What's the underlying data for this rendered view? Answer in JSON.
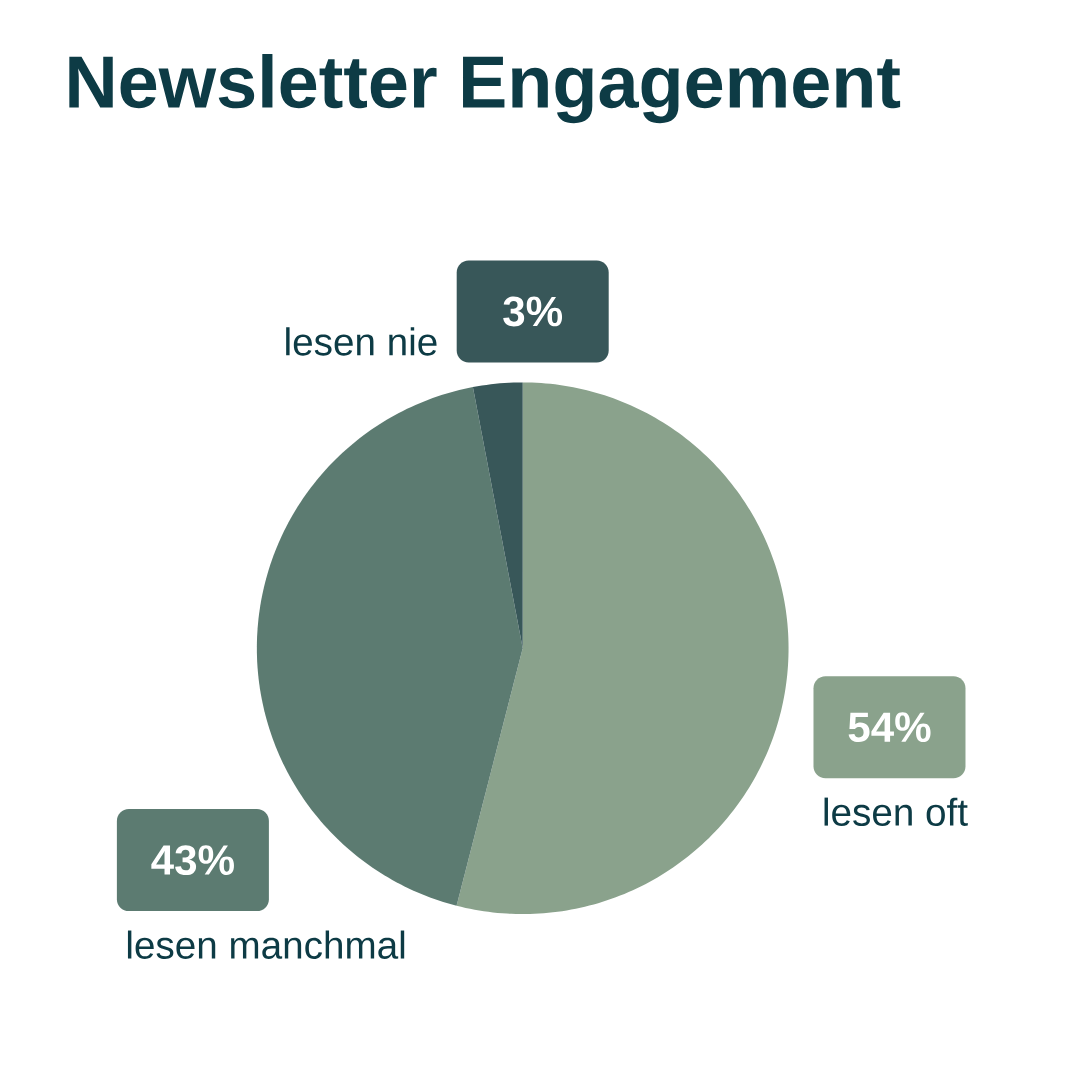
{
  "chart_data": {
    "type": "pie",
    "title": "Newsletter Engagement",
    "categories": [
      "lesen oft",
      "lesen manchmal",
      "lesen nie"
    ],
    "values": [
      54,
      43,
      3
    ],
    "colors": [
      "#8aa28c",
      "#5c7b71",
      "#385759"
    ],
    "value_labels": [
      "54%",
      "43%",
      "3%"
    ]
  }
}
